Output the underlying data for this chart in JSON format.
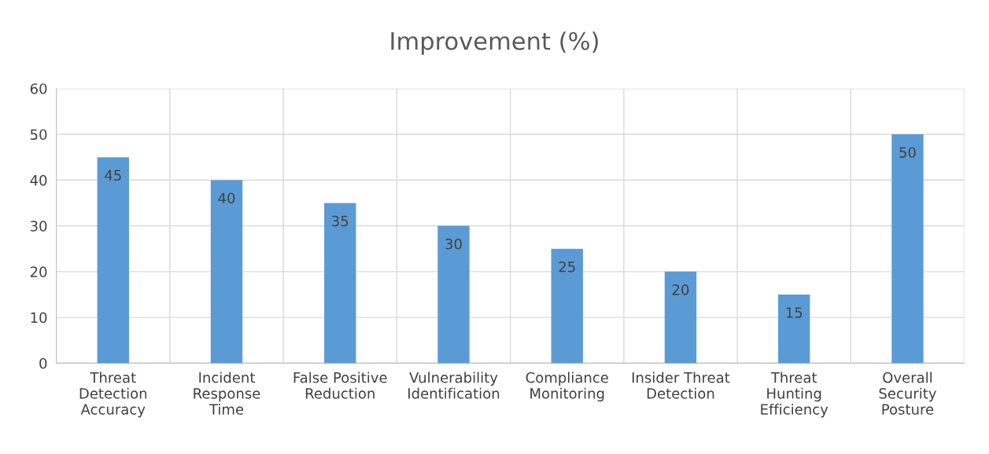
{
  "chart_data": {
    "type": "bar",
    "title": "Improvement (%)",
    "categories": [
      "Threat\nDetection\nAccuracy",
      "Incident\nResponse\nTime",
      "False Positive\nReduction",
      "Vulnerability\nIdentification",
      "Compliance\nMonitoring",
      "Insider Threat\nDetection",
      "Threat\nHunting\nEfficiency",
      "Overall\nSecurity\nPosture"
    ],
    "values": [
      45,
      40,
      35,
      30,
      25,
      20,
      15,
      50
    ],
    "color": "#5b9bd5",
    "ylim": [
      0,
      60
    ],
    "yticks": [
      0,
      10,
      20,
      30,
      40,
      50,
      60
    ],
    "grid": true,
    "data_labels": true
  }
}
